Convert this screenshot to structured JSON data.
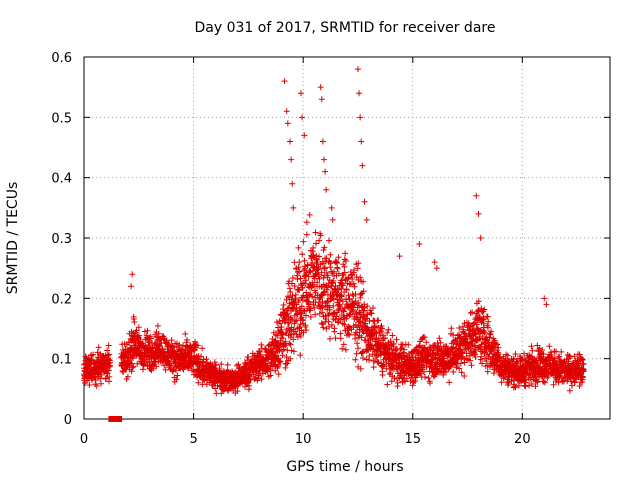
{
  "chart_data": {
    "type": "scatter",
    "title": "Day 031 of 2017, SRMTID for receiver dare",
    "xlabel": "GPS time / hours",
    "ylabel": "SRMTID / TECUs",
    "xlim": [
      0,
      24
    ],
    "ylim": [
      0,
      0.6
    ],
    "xticks": [
      0,
      5,
      10,
      15,
      20
    ],
    "xtick_labels": [
      "0",
      "5",
      "10",
      "15",
      "20"
    ],
    "yticks": [
      0,
      0.1,
      0.2,
      0.3,
      0.4,
      0.5,
      0.6
    ],
    "ytick_labels": [
      "0",
      "0.1",
      "0.2",
      "0.3",
      "0.4",
      "0.5",
      "0.6"
    ],
    "grid": true,
    "marker": "plus",
    "color": "#e00000",
    "x_data_end": 22.8,
    "profile": {
      "x": [
        0,
        0.5,
        1,
        1.5,
        2,
        2.3,
        2.6,
        3,
        3.5,
        4,
        4.5,
        5,
        5.5,
        6,
        6.5,
        7,
        7.5,
        8,
        8.5,
        9,
        9.5,
        10,
        10.5,
        11,
        11.5,
        12,
        12.5,
        13,
        13.5,
        14,
        14.5,
        15,
        15.5,
        16,
        16.5,
        17,
        17.5,
        18,
        18.5,
        19,
        19.5,
        20,
        20.5,
        21,
        21.5,
        22,
        22.8
      ],
      "center": [
        0.08,
        0.085,
        0.09,
        0.09,
        0.1,
        0.13,
        0.11,
        0.11,
        0.12,
        0.1,
        0.1,
        0.1,
        0.08,
        0.07,
        0.065,
        0.065,
        0.08,
        0.09,
        0.1,
        0.14,
        0.17,
        0.21,
        0.24,
        0.22,
        0.2,
        0.19,
        0.18,
        0.14,
        0.12,
        0.1,
        0.09,
        0.09,
        0.1,
        0.1,
        0.1,
        0.11,
        0.13,
        0.15,
        0.12,
        0.09,
        0.08,
        0.08,
        0.09,
        0.09,
        0.085,
        0.08,
        0.08
      ],
      "spread": [
        0.03,
        0.03,
        0.03,
        0.03,
        0.035,
        0.05,
        0.04,
        0.04,
        0.035,
        0.035,
        0.035,
        0.04,
        0.03,
        0.025,
        0.025,
        0.025,
        0.03,
        0.03,
        0.04,
        0.07,
        0.1,
        0.1,
        0.1,
        0.1,
        0.09,
        0.1,
        0.09,
        0.06,
        0.05,
        0.04,
        0.04,
        0.04,
        0.04,
        0.04,
        0.04,
        0.045,
        0.05,
        0.06,
        0.05,
        0.03,
        0.03,
        0.03,
        0.035,
        0.035,
        0.03,
        0.03,
        0.03
      ]
    },
    "outliers": {
      "x": [
        2.15,
        2.2,
        9.15,
        9.25,
        9.3,
        9.4,
        9.45,
        9.5,
        9.55,
        9.9,
        9.95,
        10.05,
        10.8,
        10.85,
        10.9,
        10.95,
        11,
        11.05,
        11.3,
        11.35,
        12.5,
        12.55,
        12.6,
        12.65,
        12.7,
        12.8,
        12.9,
        14.4,
        15.3,
        16.1,
        17.9,
        18,
        18.1,
        21.0,
        21.1,
        16.0
      ],
      "y": [
        0.22,
        0.24,
        0.56,
        0.51,
        0.49,
        0.46,
        0.43,
        0.39,
        0.35,
        0.54,
        0.5,
        0.47,
        0.55,
        0.53,
        0.46,
        0.43,
        0.41,
        0.38,
        0.35,
        0.33,
        0.58,
        0.54,
        0.5,
        0.46,
        0.42,
        0.36,
        0.33,
        0.27,
        0.29,
        0.25,
        0.37,
        0.34,
        0.3,
        0.2,
        0.19,
        0.26
      ]
    },
    "gaps": {
      "x": [
        1.25,
        1.3,
        1.35,
        1.55,
        1.6
      ],
      "y": [
        0,
        0,
        0,
        0,
        0
      ]
    }
  }
}
